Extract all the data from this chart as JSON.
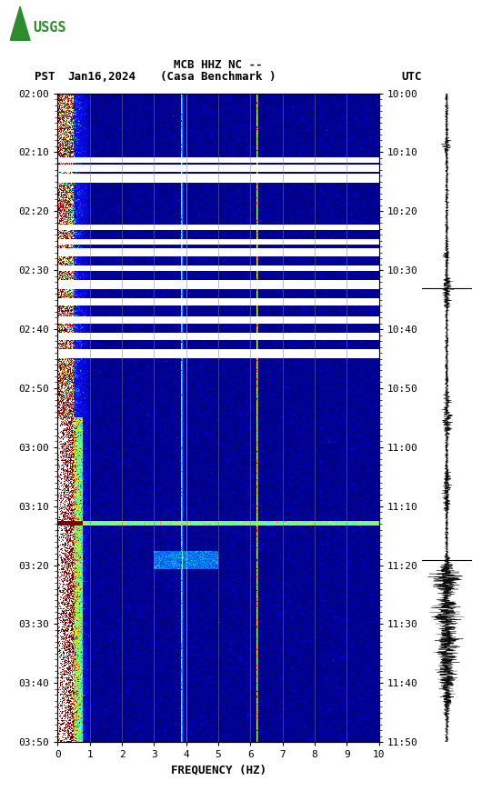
{
  "title_line1": "MCB HHZ NC --",
  "title_line2": "(Casa Benchmark )",
  "date_label": "Jan16,2024",
  "pst_label": "PST",
  "utc_label": "UTC",
  "freq_label": "FREQUENCY (HZ)",
  "freq_min": 0,
  "freq_max": 10,
  "freq_ticks": [
    0,
    1,
    2,
    3,
    4,
    5,
    6,
    7,
    8,
    9,
    10
  ],
  "pst_times": [
    "02:00",
    "02:10",
    "02:20",
    "02:30",
    "02:40",
    "02:50",
    "03:00",
    "03:10",
    "03:20",
    "03:30",
    "03:40",
    "03:50"
  ],
  "utc_times": [
    "10:00",
    "10:10",
    "10:20",
    "10:30",
    "10:40",
    "10:50",
    "11:00",
    "11:10",
    "11:20",
    "11:30",
    "11:40",
    "11:50"
  ],
  "bg_color": "#ffffff",
  "figure_width": 5.52,
  "figure_height": 8.92,
  "dpi": 100,
  "spec_vmin": 0,
  "spec_vmax": 8,
  "gap_color": "#ffffff",
  "tonal_freq1": 3.85,
  "tonal_freq2": 4.0,
  "tonal_freq3": 6.2,
  "bright_band_time": 0.663,
  "waveform_color": "#000000"
}
